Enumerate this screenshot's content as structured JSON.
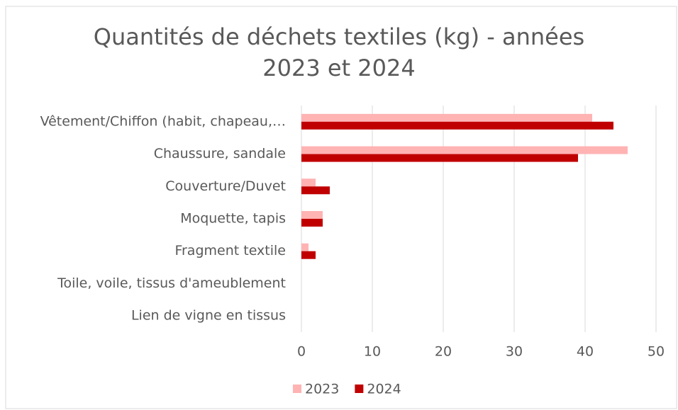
{
  "chart_data": {
    "type": "hbar",
    "title": "Quantités de déchets textiles (kg) - années 2023 et 2024",
    "categories": [
      "Vêtement/Chiffon (habit, chapeau,…",
      "Chaussure, sandale",
      "Couverture/Duvet",
      "Moquette, tapis",
      "Fragment textile",
      "Toile, voile, tissus d'ameublement",
      "Lien de vigne en tissus"
    ],
    "series": [
      {
        "name": "2023",
        "color": "#ffb3b3",
        "values": [
          41,
          46,
          2,
          3,
          1,
          0,
          0
        ]
      },
      {
        "name": "2024",
        "color": "#c00000",
        "values": [
          44,
          39,
          4,
          3,
          2,
          0,
          0
        ]
      }
    ],
    "xlim": [
      0,
      50
    ],
    "xticks": [
      0,
      10,
      20,
      30,
      40,
      50
    ],
    "grid": true,
    "legend": "bottom"
  }
}
